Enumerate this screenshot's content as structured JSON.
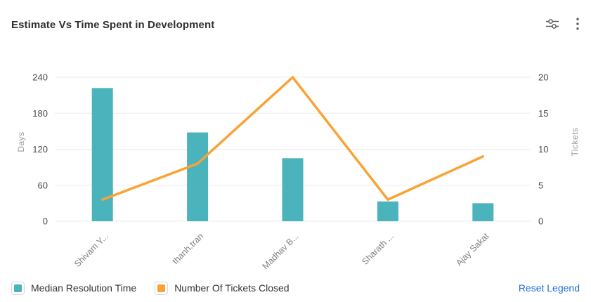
{
  "header": {
    "title": "Estimate Vs Time Spent in Development",
    "settings_icon": "sliders-icon",
    "more_icon": "kebab-menu-icon"
  },
  "chart_data": {
    "type": "bar",
    "subtype": "combo-bar-line-dual-axis",
    "title": "Estimate Vs Time Spent in Development",
    "categories": [
      "Shivam Y...",
      "thanh.tran",
      "Madhav B...",
      "Sharath ...",
      "Ajay Sakat"
    ],
    "series": [
      {
        "name": "Median Resolution Time",
        "type": "bar",
        "axis": "left",
        "values": [
          222,
          148,
          105,
          33,
          30
        ],
        "color": "#4ab3bc"
      },
      {
        "name": "Number Of Tickets Closed",
        "type": "line",
        "axis": "right",
        "values": [
          3,
          8,
          20,
          3,
          9
        ],
        "color": "#f8a334"
      }
    ],
    "left_axis": {
      "label": "Days",
      "ticks": [
        0,
        60,
        120,
        180,
        240
      ],
      "range": [
        0,
        240
      ]
    },
    "right_axis": {
      "label": "Tickets",
      "ticks": [
        0,
        5,
        10,
        15,
        20
      ],
      "range": [
        0,
        20
      ]
    },
    "grid": true,
    "x_label_rotation": -45,
    "legend_position": "bottom"
  },
  "legend": {
    "reset_label": "Reset Legend"
  },
  "colors": {
    "bar": "#4ab3bc",
    "line": "#f8a334",
    "link": "#1a6fd4",
    "gridline": "#ececec",
    "tick_text": "#4a4a4a",
    "axis_name_text": "#9b9b9b",
    "category_text": "#7f7f7f"
  }
}
